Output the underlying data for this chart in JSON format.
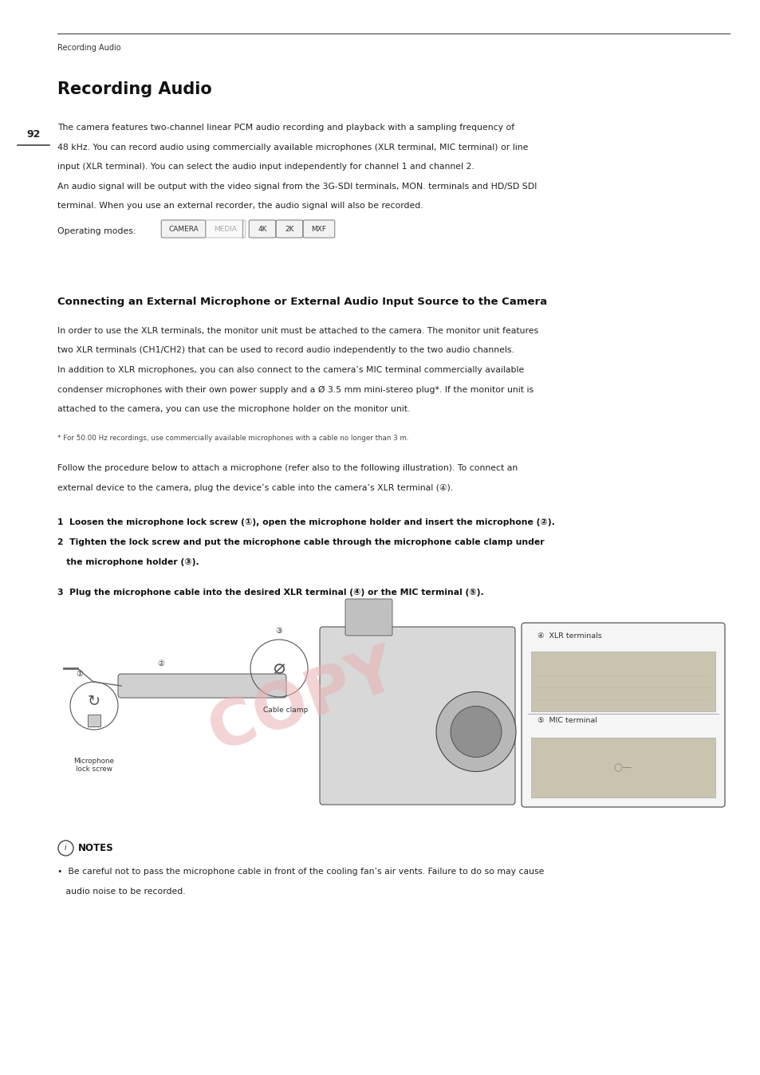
{
  "page_width": 9.54,
  "page_height": 13.48,
  "bg_color": "#ffffff",
  "breadcrumb": "Recording Audio",
  "page_number": "92",
  "title1": "Recording Audio",
  "body1_lines": [
    "The camera features two-channel linear PCM audio recording and playback with a sampling frequency of",
    "48 kHz. You can record audio using commercially available microphones (XLR terminal, MIC terminal) or line",
    "input (XLR terminal). You can select the audio input independently for channel 1 and channel 2.",
    "An audio signal will be output with the video signal from the 3G-SDI terminals, MON. terminals and HD/SD SDI",
    "terminal. When you use an external recorder, the audio signal will also be recorded."
  ],
  "op_modes_label": "Operating modes:",
  "op_modes": [
    "CAMERA",
    "MEDIA",
    "4K",
    "2K",
    "MXF"
  ],
  "op_modes_active": [
    true,
    false,
    true,
    true,
    true
  ],
  "title2": "Connecting an External Microphone or External Audio Input Source to the Camera",
  "body2_lines": [
    "In order to use the XLR terminals, the monitor unit must be attached to the camera. The monitor unit features",
    "two XLR terminals (CH1/CH2) that can be used to record audio independently to the two audio channels.",
    "In addition to XLR microphones, you can also connect to the camera’s MIC terminal commercially available",
    "condenser microphones with their own power supply and a Ø 3.5 mm mini-stereo plug*. If the monitor unit is",
    "attached to the camera, you can use the microphone holder on the monitor unit."
  ],
  "footnote": "* For 50.00 Hz recordings, use commercially available microphones with a cable no longer than 3 m.",
  "body3_lines": [
    "Follow the procedure below to attach a microphone (refer also to the following illustration). To connect an",
    "external device to the camera, plug the device’s cable into the camera’s XLR terminal (④)."
  ],
  "step1": "1  Loosen the microphone lock screw (①), open the microphone holder and insert the microphone (②).",
  "step2a": "2  Tighten the lock screw and put the microphone cable through the microphone cable clamp under",
  "step2b": "   the microphone holder (③).",
  "step3": "3  Plug the microphone cable into the desired XLR terminal (④) or the MIC terminal (⑤).",
  "note_line1": "•  Be careful not to pass the microphone cable in front of the cooling fan’s air vents. Failure to do so may cause",
  "note_line2": "   audio noise to be recorded.",
  "watermark_text": "COPY"
}
